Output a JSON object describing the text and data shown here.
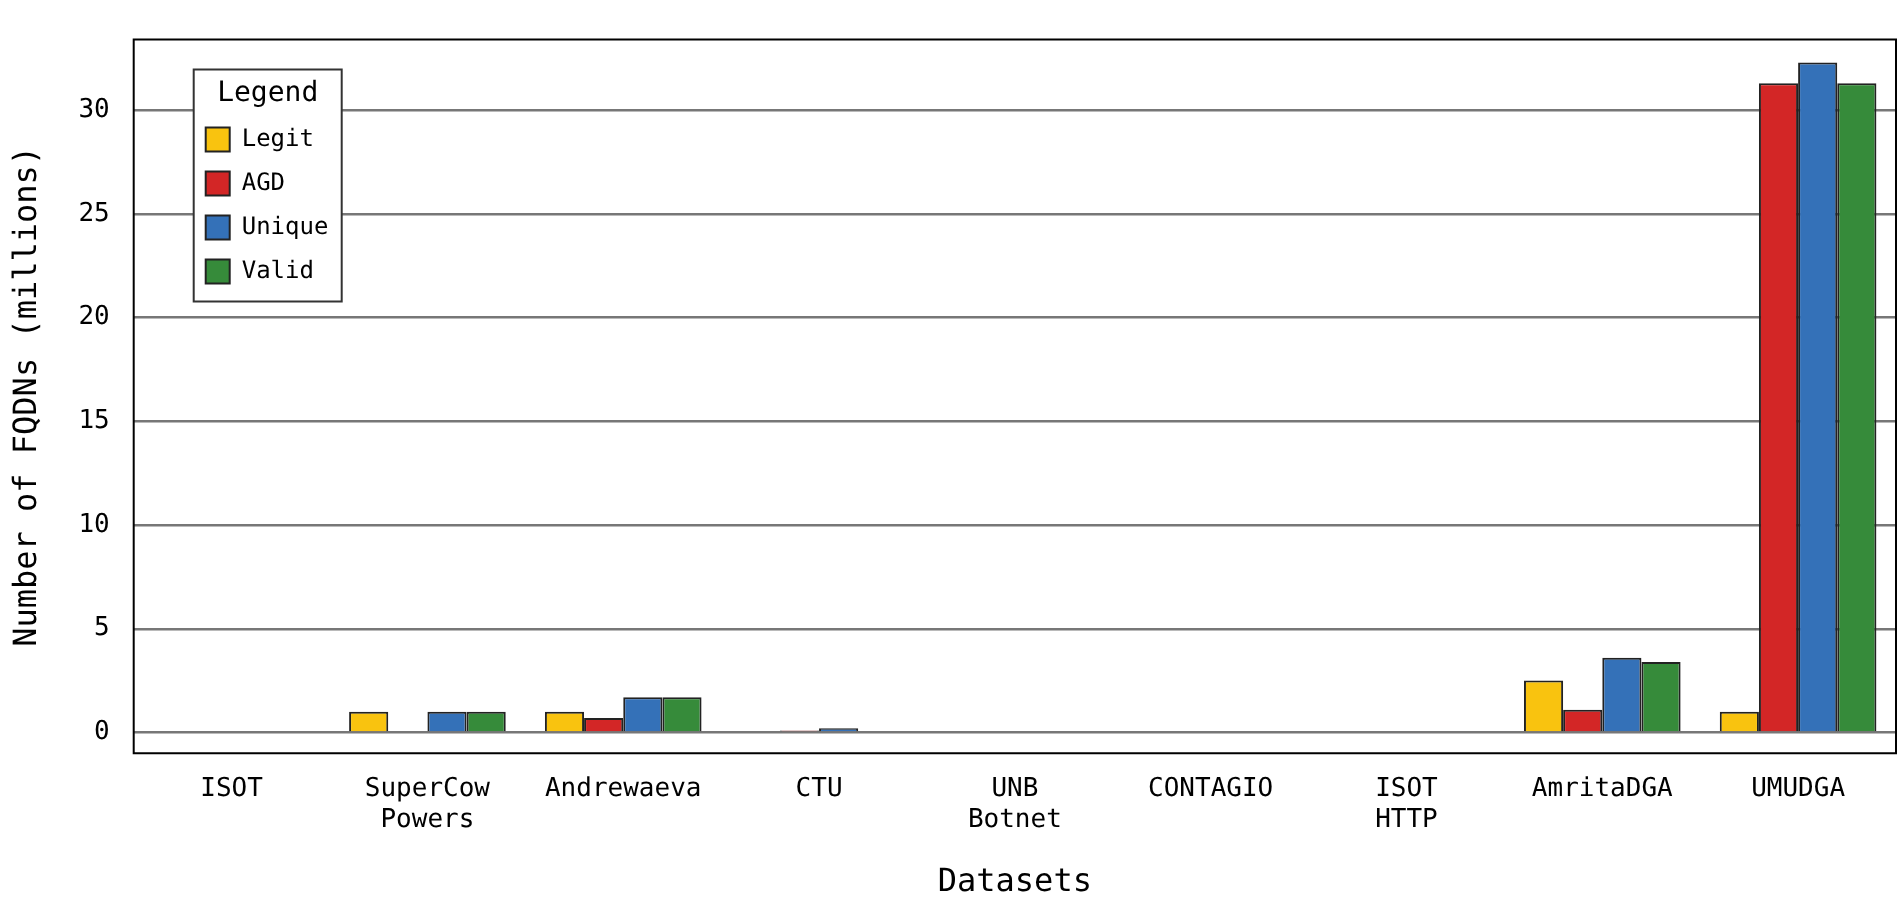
{
  "chart_data": {
    "type": "bar",
    "xlabel": "Datasets",
    "ylabel": "Number of FQDNs (millions)",
    "legend_title": "Legend",
    "legend": "top left",
    "grid": "y",
    "categories": [
      "ISOT",
      "SuperCow Powers",
      "Andrewaeva",
      "CTU",
      "UNB Botnet",
      "CONTAGIO",
      "ISOT HTTP",
      "AmritaDGA",
      "UMUDGA"
    ],
    "ylim": [
      -1,
      33.4
    ],
    "yticks": [
      0,
      5,
      10,
      15,
      20,
      25,
      30
    ],
    "series": [
      {
        "name": "Legit",
        "color": "#f9c30f",
        "values": [
          0,
          1,
          1,
          0,
          0,
          0,
          0,
          2.5,
          1
        ]
      },
      {
        "name": "AGD",
        "color": "#d32626",
        "values": [
          0,
          0,
          0.7,
          0.1,
          0,
          0,
          0,
          1.1,
          31.3
        ]
      },
      {
        "name": "Unique",
        "color": "#3471b8",
        "values": [
          0,
          1,
          1.7,
          0.2,
          0,
          0,
          0,
          3.6,
          32.3
        ]
      },
      {
        "name": "Valid",
        "color": "#368b3a",
        "values": [
          0,
          1,
          1.7,
          0,
          0,
          0,
          0,
          3.4,
          31.3
        ]
      }
    ]
  }
}
